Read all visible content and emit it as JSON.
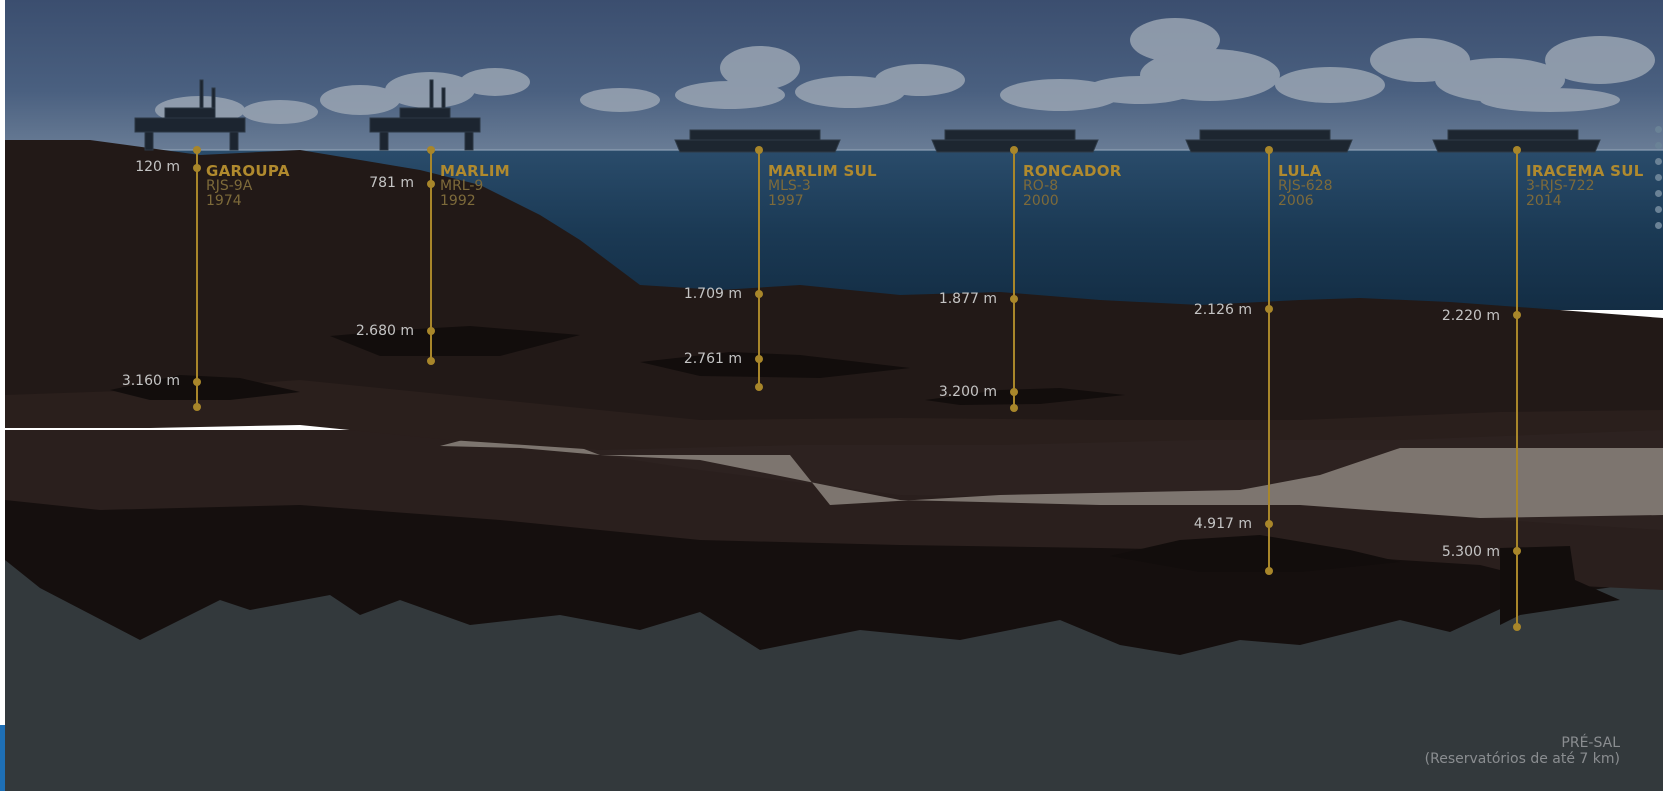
{
  "wells": [
    {
      "name": "GAROUPA",
      "code": "RJS-9A",
      "year": "1974",
      "depths": [
        "120 m",
        "3.160 m"
      ]
    },
    {
      "name": "MARLIM",
      "code": "MRL-9",
      "year": "1992",
      "depths": [
        "781 m",
        "2.680 m"
      ]
    },
    {
      "name": "MARLIM SUL",
      "code": "MLS-3",
      "year": "1997",
      "depths": [
        "1.709 m",
        "2.761 m"
      ]
    },
    {
      "name": "RONCADOR",
      "code": "RO-8",
      "year": "2000",
      "depths": [
        "1.877 m",
        "3.200 m"
      ]
    },
    {
      "name": "LULA",
      "code": "RJS-628",
      "year": "2006",
      "depths": [
        "2.126 m",
        "4.917 m"
      ]
    },
    {
      "name": "IRACEMA SUL",
      "code": "3-RJS-722",
      "year": "2014",
      "depths": [
        "2.220 m",
        "5.300 m"
      ]
    }
  ],
  "presal": {
    "title": "PRÉ-SAL",
    "subtitle": "(Reservatórios de até 7 km)"
  },
  "colors": {
    "well_line": "#a8862a",
    "sea": "#1d3c57",
    "rock": "#221917",
    "salt": "#8a8079",
    "basement": "#33393c"
  },
  "icons": {
    "rig": "oil-platform-icon",
    "ship": "fpso-ship-icon"
  }
}
